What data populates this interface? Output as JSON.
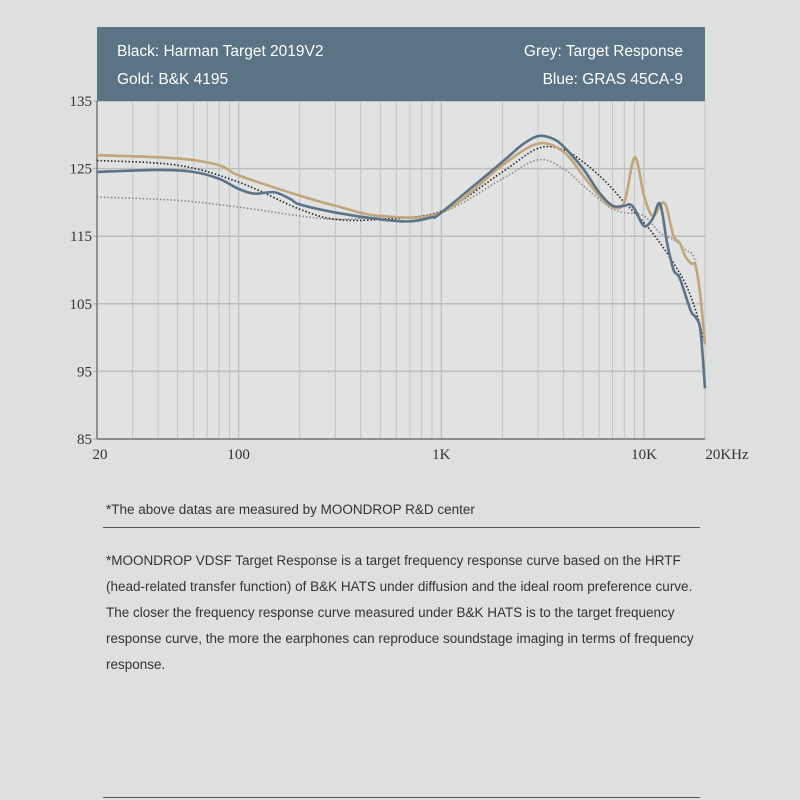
{
  "legend": {
    "black": "Black: Harman Target 2019V2",
    "grey": "Grey: Target Response",
    "gold": "Gold: B&K 4195",
    "blue": "Blue: GRAS 45CA-9"
  },
  "chart_data": {
    "type": "line",
    "xscale": "log",
    "xlim": [
      20,
      20000
    ],
    "ylim": [
      85,
      135
    ],
    "grid": true,
    "x_ticks": [
      {
        "value": 20,
        "label": "20"
      },
      {
        "value": 100,
        "label": "100"
      },
      {
        "value": 1000,
        "label": "1K"
      },
      {
        "value": 10000,
        "label": "10K"
      },
      {
        "value": 20000,
        "label": "20KHz"
      }
    ],
    "y_ticks": [
      135,
      125,
      115,
      105,
      95,
      85
    ],
    "series": [
      {
        "name": "Harman Target 2019V2",
        "color": "#222222",
        "style": "dotted",
        "x": [
          20,
          50,
          100,
          200,
          300,
          500,
          1000,
          2000,
          3000,
          4000,
          5000,
          6000,
          7000,
          8000,
          10000,
          12000,
          14000,
          16000,
          18000,
          20000
        ],
        "y": [
          126.2,
          125.5,
          123,
          119,
          117.5,
          117.5,
          118.7,
          124.5,
          128,
          127.8,
          126,
          124,
          122,
          120,
          117,
          114,
          111,
          108,
          104,
          99
        ]
      },
      {
        "name": "Target Response",
        "color": "#8a8a8a",
        "style": "dotted",
        "x": [
          20,
          50,
          100,
          200,
          300,
          500,
          1000,
          2000,
          3000,
          4000,
          5000,
          6000,
          7000,
          8000,
          10000,
          12000,
          14000,
          16000,
          18000,
          20000
        ],
        "y": [
          120.8,
          120.3,
          119.3,
          118,
          117.5,
          117.8,
          118.5,
          123.5,
          126.3,
          125,
          122.5,
          120.5,
          119,
          118.5,
          118,
          115.5,
          114.5,
          113,
          111,
          100
        ]
      },
      {
        "name": "B&K 4195",
        "color": "#c2a67a",
        "style": "solid",
        "x": [
          20,
          50,
          80,
          100,
          200,
          300,
          500,
          1000,
          2000,
          3000,
          4000,
          5000,
          6000,
          7000,
          8000,
          9000,
          10000,
          11000,
          12000,
          12500,
          13000,
          14000,
          15000,
          16000,
          17000,
          18000,
          19000,
          20000
        ],
        "y": [
          127,
          126.5,
          125.5,
          124,
          121,
          119.5,
          118,
          118.5,
          125.5,
          128.7,
          127.5,
          124,
          121,
          119.3,
          120,
          126.7,
          121,
          118,
          119.5,
          120,
          119,
          115,
          114,
          112,
          111,
          110.5,
          106,
          99
        ]
      },
      {
        "name": "GRAS 45CA-9",
        "color": "#5b7388",
        "style": "solid",
        "x": [
          20,
          40,
          60,
          80,
          100,
          120,
          150,
          180,
          200,
          300,
          500,
          700,
          900,
          1000,
          2000,
          2500,
          3000,
          3500,
          4000,
          5000,
          6000,
          7000,
          8000,
          8500,
          9000,
          10000,
          11000,
          12000,
          13000,
          14000,
          15000,
          17000,
          18000,
          19000,
          20000
        ],
        "y": [
          124.5,
          124.8,
          124.5,
          123.5,
          122,
          121.3,
          121.5,
          120.5,
          119.7,
          118.5,
          117.5,
          117.2,
          117.8,
          118.5,
          126,
          128.5,
          129.8,
          129.5,
          128.3,
          125,
          121.5,
          119.5,
          119.5,
          119.7,
          119,
          116.5,
          117.5,
          119.8,
          114,
          110,
          108.8,
          104,
          103,
          101,
          92.5
        ]
      }
    ]
  },
  "notes": {
    "measured": "*The above datas are measured by MOONDROP R&D center",
    "description": "*MOONDROP VDSF Target Response is a target frequency response curve based on the HRTF (head-related transfer function) of B&K HATS under diffusion and the ideal room preference curve. The closer the frequency response curve measured under B&K HATS is to the target frequency response curve, the more the earphones can reproduce soundstage imaging in terms of frequency response."
  }
}
